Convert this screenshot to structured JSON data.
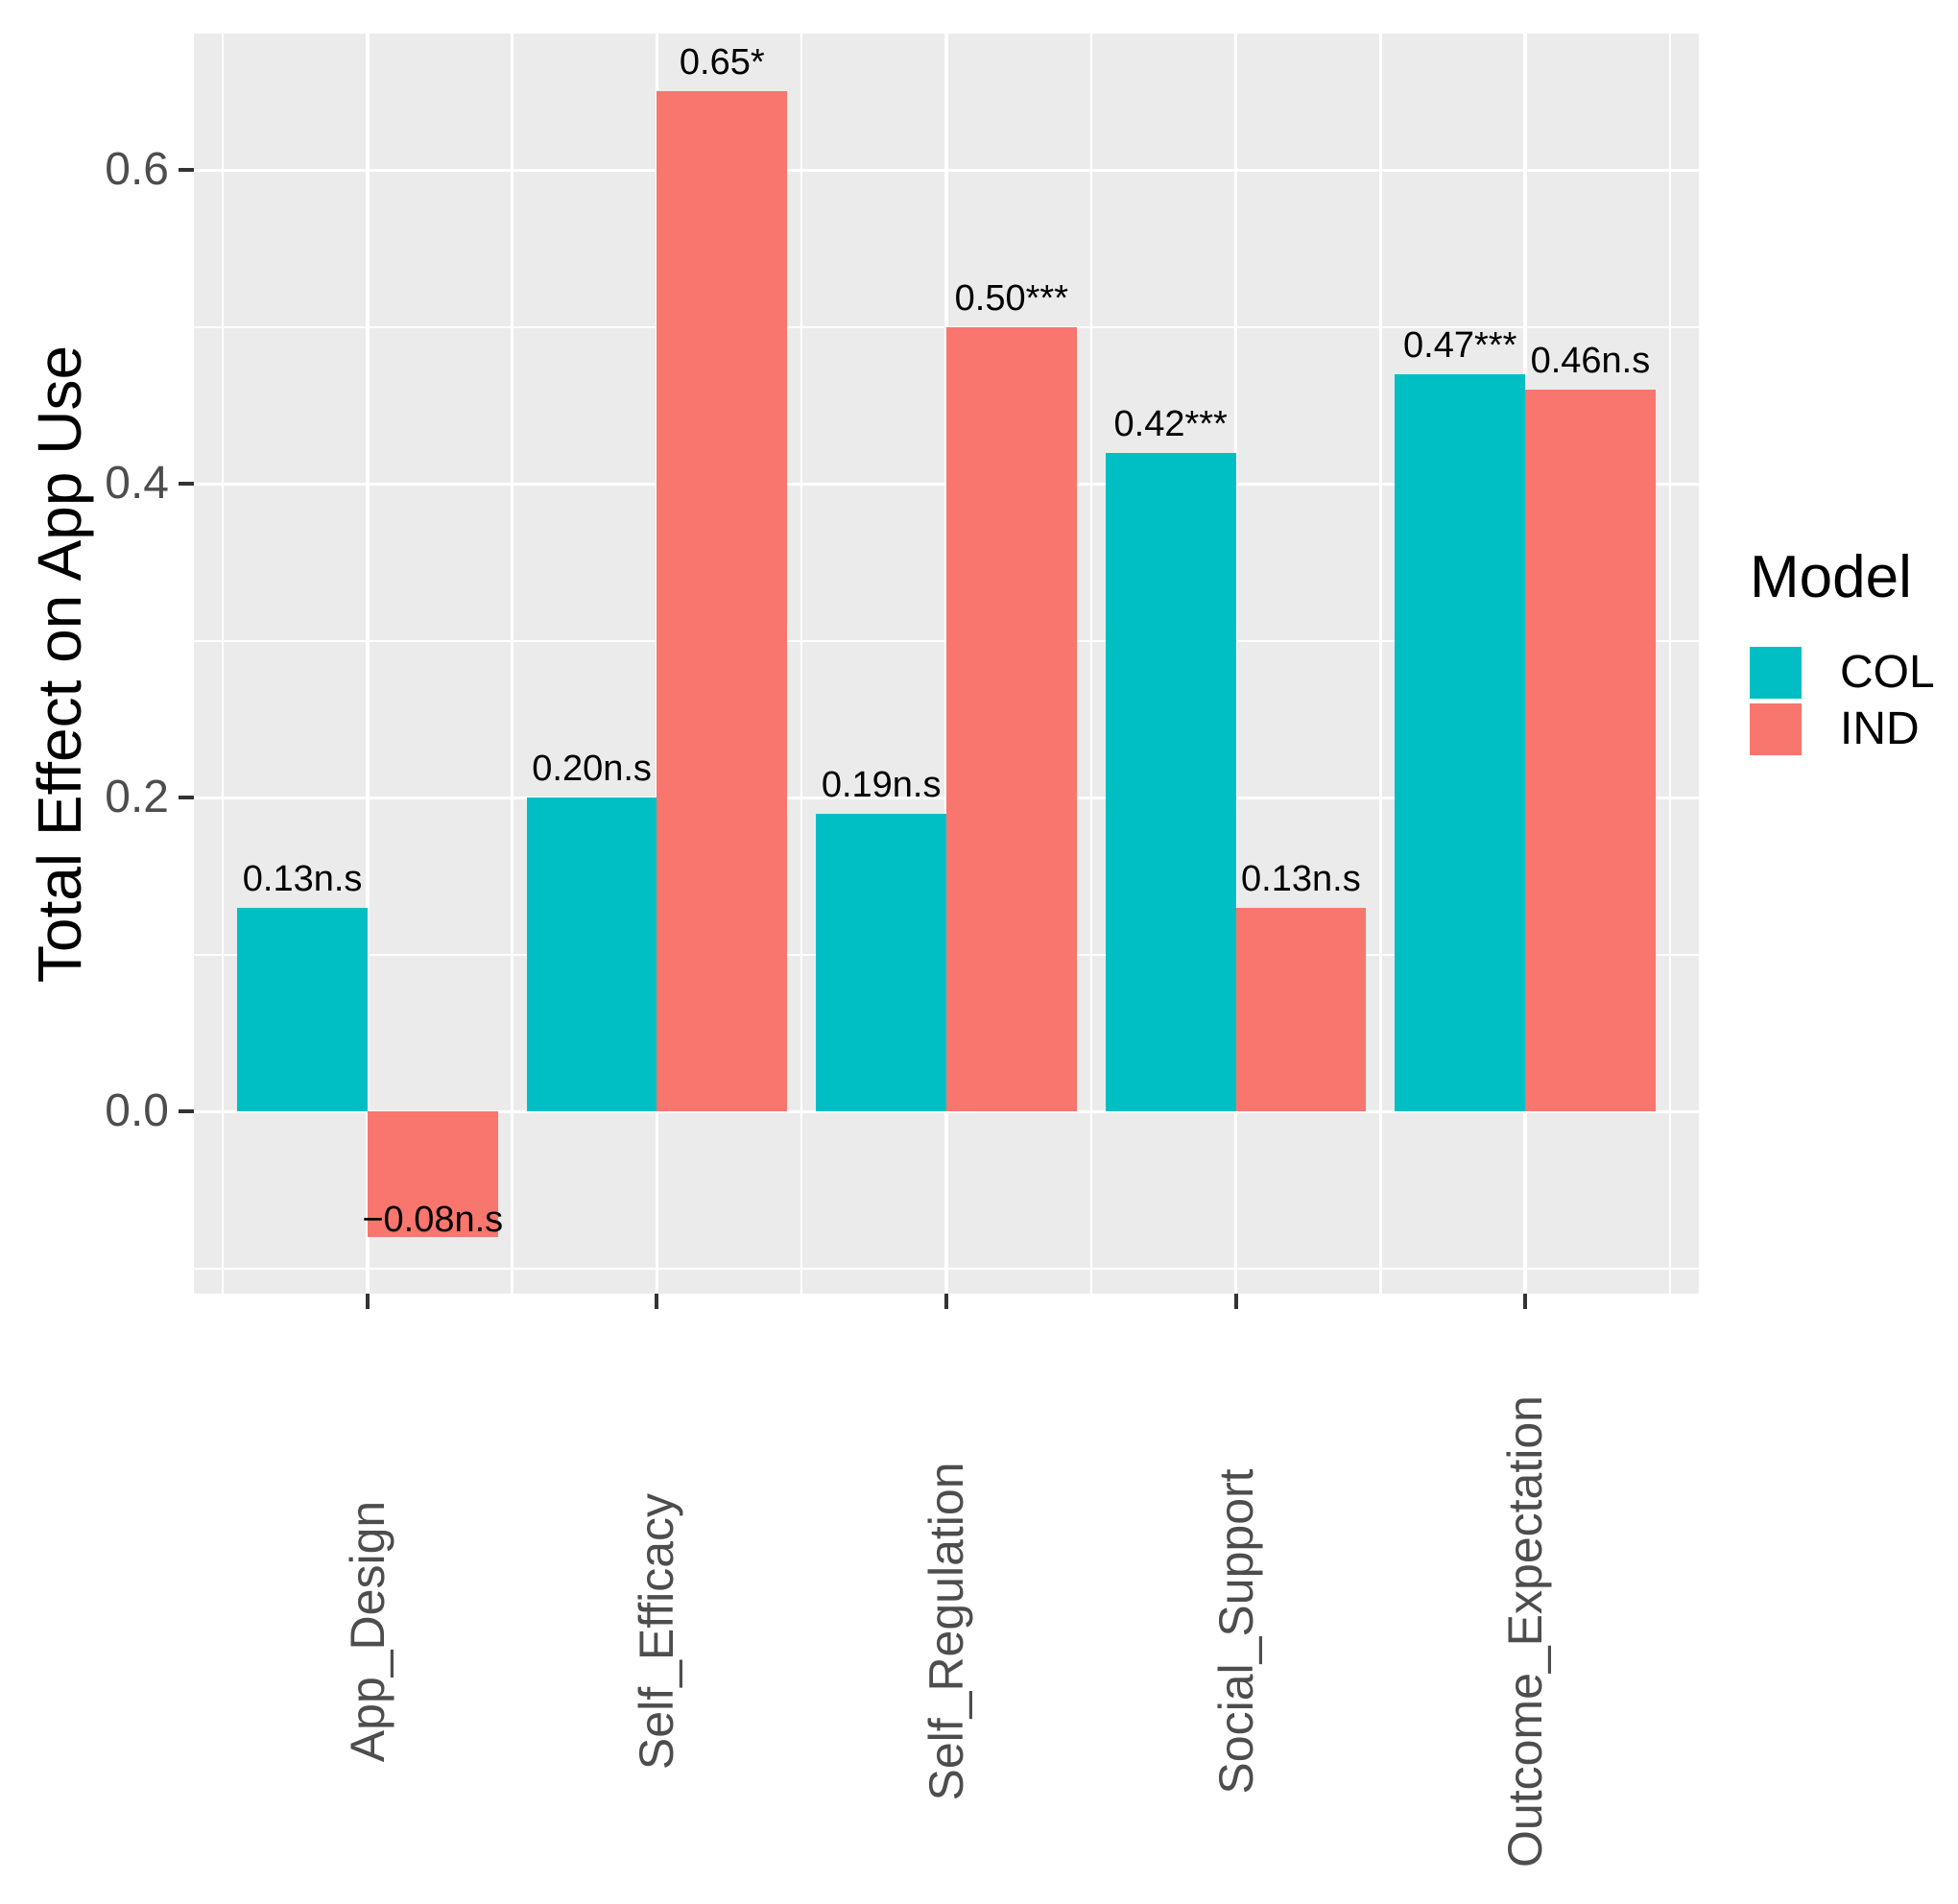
{
  "chart_data": {
    "type": "bar",
    "title": "",
    "xlabel": "",
    "ylabel": "Total Effect on App Use",
    "categories": [
      "App_Design",
      "Self_Efficacy",
      "Self_Regulation",
      "Social_Support",
      "Outcome_Expectation"
    ],
    "series": [
      {
        "name": "COL",
        "color": "#00BFC4",
        "values": [
          0.13,
          0.2,
          0.19,
          0.42,
          0.47
        ],
        "bar_labels": [
          "0.13n.s",
          "0.20n.s",
          "0.19n.s",
          "0.42***",
          "0.47***"
        ]
      },
      {
        "name": "IND",
        "color": "#F8766D",
        "values": [
          -0.08,
          0.65,
          0.5,
          0.13,
          0.46
        ],
        "bar_labels": [
          "−0.08n.s",
          "0.65*",
          "0.50***",
          "0.13n.s",
          "0.46n.s"
        ]
      }
    ],
    "ylim": [
      -0.116,
      0.687
    ],
    "yticks": [
      0.0,
      0.2,
      0.4,
      0.6
    ],
    "ytick_labels": [
      "0.0",
      "0.2",
      "0.4",
      "0.6"
    ],
    "minor_gridlines": [
      -0.1,
      0.1,
      0.3,
      0.5
    ],
    "grid": true,
    "panel_background": "#EBEBEB",
    "gridline_color": "#FFFFFF",
    "tick_color": "#333333",
    "axis_text_color": "#4d4d4d",
    "legend": {
      "title": "Model",
      "position": "right",
      "entries": [
        "COL",
        "IND"
      ]
    },
    "bar_position": "dodge"
  }
}
